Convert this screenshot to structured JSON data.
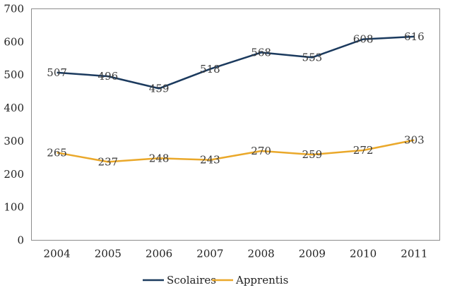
{
  "chart_data": {
    "type": "line",
    "categories": [
      "2004",
      "2005",
      "2006",
      "2007",
      "2008",
      "2009",
      "2010",
      "2011"
    ],
    "ylim": [
      0,
      700
    ],
    "yticks": [
      0,
      100,
      200,
      300,
      400,
      500,
      600,
      700
    ],
    "grid": false,
    "legend_position": "bottom",
    "series": [
      {
        "name": "Scolaires",
        "color": "#1b3a5e",
        "values": [
          507,
          496,
          459,
          518,
          568,
          553,
          608,
          616
        ]
      },
      {
        "name": "Apprentis",
        "color": "#eaa82a",
        "values": [
          265,
          237,
          248,
          243,
          270,
          259,
          272,
          303
        ]
      }
    ]
  }
}
